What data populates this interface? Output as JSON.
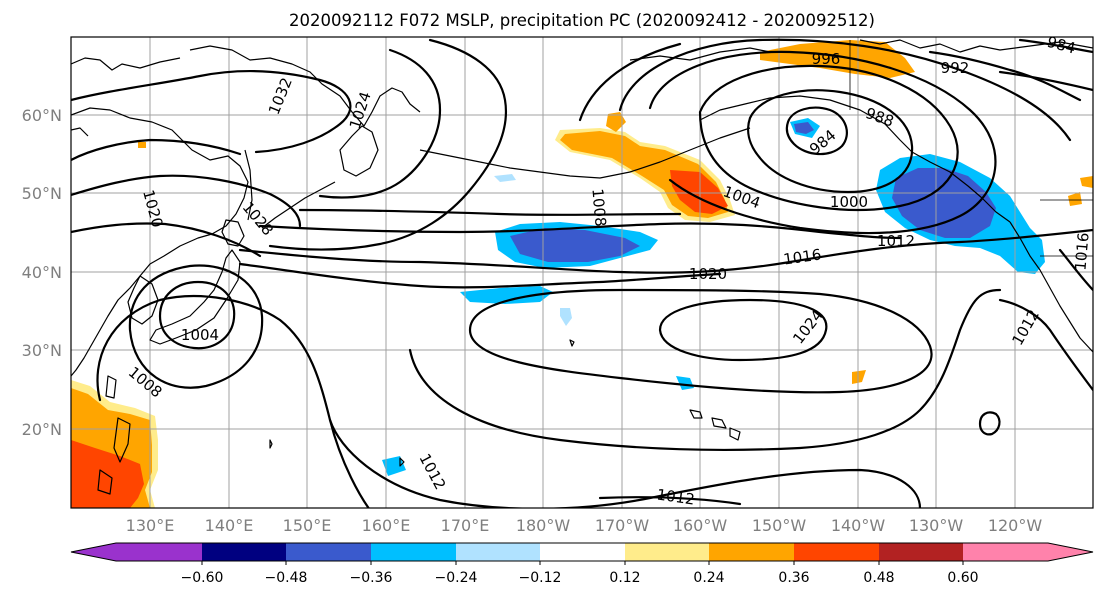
{
  "title": "2020092112 F072 MSLP, precipitation PC (2020092412 - 2020092512)",
  "lat_labels": [
    "60°N",
    "50°N",
    "40°N",
    "30°N",
    "20°N"
  ],
  "lon_labels": [
    "130°E",
    "140°E",
    "150°E",
    "160°E",
    "170°E",
    "180°W",
    "170°W",
    "160°W",
    "150°W",
    "140°W",
    "130°W",
    "120°W"
  ],
  "isobar_labels": {
    "l1032": "1032",
    "l1024a": "1024",
    "l1020a": "1020",
    "l1028": "1028",
    "l1004a": "1004",
    "l1008a": "1008",
    "l1008b": "1008",
    "l996": "996",
    "l992": "992",
    "l984": "984",
    "l988": "988",
    "l1004b": "1004",
    "l1000": "1000",
    "l1012a": "1012",
    "l1016a": "1016",
    "l1020b": "1020",
    "l1024b": "1024",
    "l1012b": "1012",
    "l1012c": "1012",
    "l1016b": "1016",
    "l1012d": "1012",
    "l984b": "984"
  },
  "colorbar": {
    "ticks": [
      "−0.60",
      "−0.48",
      "−0.36",
      "−0.24",
      "−0.12",
      "0.12",
      "0.24",
      "0.36",
      "0.48",
      "0.60"
    ],
    "colors": {
      "min": "#9a32cd",
      "n060": "#000080",
      "n048": "#3a5acd",
      "n036": "#00bfff",
      "n024": "#b0e2ff",
      "mid": "#ffffff",
      "p012": "#ffec8b",
      "p024": "#ffa500",
      "p036": "#ff4500",
      "p048": "#b22222",
      "max": "#ff82ab"
    }
  }
}
